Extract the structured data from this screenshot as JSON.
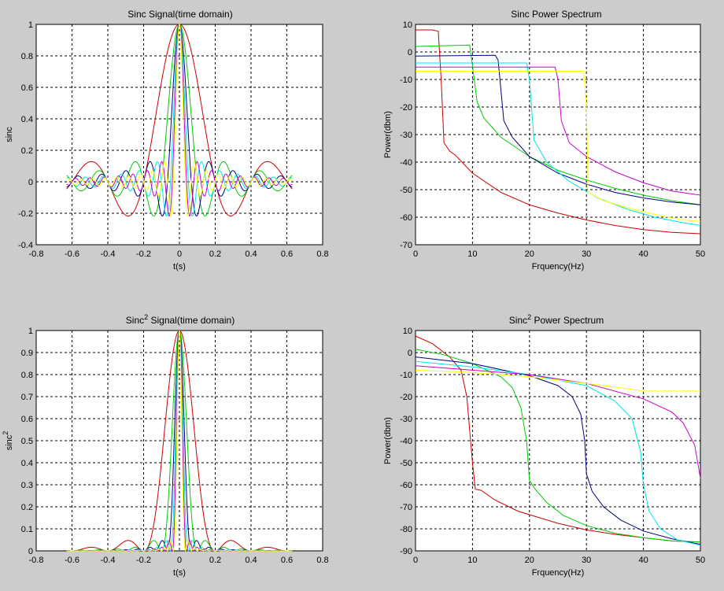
{
  "window": {
    "background": "#cccccc"
  },
  "colors": {
    "series": [
      "#cc0000",
      "#00cc00",
      "#000080",
      "#00e5e5",
      "#cc00cc",
      "#ffff00"
    ],
    "axes_bg": "#ffffff",
    "grid": "#000000"
  },
  "chart_data": [
    {
      "type": "line",
      "title": "Sinc Signal(time domain)",
      "xlabel": "t(s)",
      "ylabel": "sinc",
      "xlim": [
        -0.8,
        0.8
      ],
      "ylim": [
        -0.4,
        1
      ],
      "xticks": [
        -0.8,
        -0.6,
        -0.4,
        -0.2,
        0,
        0.2,
        0.4,
        0.6,
        0.8
      ],
      "yticks": [
        -0.4,
        -0.2,
        0,
        0.2,
        0.4,
        0.6,
        0.8,
        1
      ],
      "xtick_labels": [
        "-0.8",
        "-0.6",
        "-0.4",
        "-0.2",
        "0",
        "0.2",
        "0.4",
        "0.6",
        "0.8"
      ],
      "ytick_labels": [
        "-0.4",
        "-0.2",
        "0",
        "0.2",
        "0.4",
        "0.6",
        "0.8",
        "1"
      ],
      "grid": true,
      "series": [
        {
          "color": "#cc0000",
          "bandwidth_hz": 5,
          "x_range": [
            -0.63,
            0.63
          ],
          "kind": "sinc"
        },
        {
          "color": "#00cc00",
          "bandwidth_hz": 10,
          "x_range": [
            -0.63,
            0.63
          ],
          "kind": "sinc"
        },
        {
          "color": "#000080",
          "bandwidth_hz": 15,
          "x_range": [
            -0.63,
            0.63
          ],
          "kind": "sinc"
        },
        {
          "color": "#00e5e5",
          "bandwidth_hz": 20,
          "x_range": [
            -0.63,
            0.63
          ],
          "kind": "sinc"
        },
        {
          "color": "#cc00cc",
          "bandwidth_hz": 25,
          "x_range": [
            -0.63,
            0.63
          ],
          "kind": "sinc"
        },
        {
          "color": "#ffff00",
          "bandwidth_hz": 30,
          "x_range": [
            -0.63,
            0.63
          ],
          "kind": "sinc"
        }
      ]
    },
    {
      "type": "line",
      "title": "Sinc Power Spectrum",
      "xlabel": "Frquency(Hz)",
      "ylabel": "Power(dbm)",
      "xlim": [
        0,
        50
      ],
      "ylim": [
        -70,
        10
      ],
      "xticks": [
        0,
        10,
        20,
        30,
        40,
        50
      ],
      "yticks": [
        -70,
        -60,
        -50,
        -40,
        -30,
        -20,
        -10,
        0,
        10
      ],
      "xtick_labels": [
        "0",
        "10",
        "20",
        "30",
        "40",
        "50"
      ],
      "ytick_labels": [
        "-70",
        "-60",
        "-50",
        "-40",
        "-30",
        "-20",
        "-10",
        "0",
        "10"
      ],
      "grid": true,
      "series": [
        {
          "color": "#cc0000",
          "points": [
            [
              0,
              8
            ],
            [
              3,
              8
            ],
            [
              4,
              7.5
            ],
            [
              4.5,
              -10
            ],
            [
              5,
              -33
            ],
            [
              6,
              -36
            ],
            [
              7,
              -37.5
            ],
            [
              10,
              -44
            ],
            [
              15,
              -51
            ],
            [
              20,
              -55.5
            ],
            [
              25,
              -58.5
            ],
            [
              30,
              -61
            ],
            [
              35,
              -63
            ],
            [
              40,
              -64.5
            ],
            [
              45,
              -65.5
            ],
            [
              50,
              -66
            ]
          ]
        },
        {
          "color": "#00cc00",
          "points": [
            [
              0,
              2
            ],
            [
              9.5,
              2.5
            ],
            [
              10,
              -5
            ],
            [
              10.8,
              -18
            ],
            [
              12,
              -24
            ],
            [
              15,
              -31
            ],
            [
              20,
              -38
            ],
            [
              25,
              -43
            ],
            [
              30,
              -46.5
            ],
            [
              35,
              -49.5
            ],
            [
              40,
              -52
            ],
            [
              45,
              -54
            ],
            [
              50,
              -55.5
            ]
          ]
        },
        {
          "color": "#000080",
          "points": [
            [
              0,
              -1.5
            ],
            [
              14,
              -1.2
            ],
            [
              14.5,
              -3
            ],
            [
              15.5,
              -25
            ],
            [
              17,
              -31
            ],
            [
              20,
              -38
            ],
            [
              25,
              -44
            ],
            [
              30,
              -48
            ],
            [
              35,
              -51
            ],
            [
              40,
              -53
            ],
            [
              45,
              -54.5
            ],
            [
              50,
              -55.5
            ]
          ]
        },
        {
          "color": "#00e5e5",
          "points": [
            [
              0,
              -4
            ],
            [
              19.5,
              -4
            ],
            [
              20,
              -10
            ],
            [
              20.8,
              -32
            ],
            [
              23,
              -40
            ],
            [
              27,
              -47
            ],
            [
              32,
              -53
            ],
            [
              37,
              -57
            ],
            [
              42,
              -60
            ],
            [
              47,
              -62
            ],
            [
              50,
              -63
            ]
          ]
        },
        {
          "color": "#cc00cc",
          "points": [
            [
              0,
              -5.5
            ],
            [
              24.5,
              -5.5
            ],
            [
              25,
              -10
            ],
            [
              25.6,
              -25
            ],
            [
              27,
              -33
            ],
            [
              30,
              -38
            ],
            [
              35,
              -43.5
            ],
            [
              40,
              -47.5
            ],
            [
              45,
              -50.5
            ],
            [
              50,
              -52
            ]
          ]
        },
        {
          "color": "#ffff00",
          "points": [
            [
              0,
              -7
            ],
            [
              29.5,
              -7
            ],
            [
              30,
              -20
            ],
            [
              30.3,
              -51
            ],
            [
              33,
              -54
            ],
            [
              37,
              -56.5
            ],
            [
              42,
              -59
            ],
            [
              47,
              -61
            ],
            [
              50,
              -61.5
            ]
          ]
        }
      ]
    },
    {
      "type": "line",
      "title_main": "Sinc",
      "title_sup": "2",
      "title_rest": " Signal(time domain)",
      "xlabel": "t(s)",
      "ylabel_main": "sinc",
      "ylabel_sup": "2",
      "xlim": [
        -0.8,
        0.8
      ],
      "ylim": [
        0,
        1
      ],
      "xticks": [
        -0.8,
        -0.6,
        -0.4,
        -0.2,
        0,
        0.2,
        0.4,
        0.6,
        0.8
      ],
      "yticks": [
        0,
        0.1,
        0.2,
        0.3,
        0.4,
        0.5,
        0.6,
        0.7,
        0.8,
        0.9,
        1
      ],
      "xtick_labels": [
        "-0.8",
        "-0.6",
        "-0.4",
        "-0.2",
        "0",
        "0.2",
        "0.4",
        "0.6",
        "0.8"
      ],
      "ytick_labels": [
        "0",
        "0.1",
        "0.2",
        "0.3",
        "0.4",
        "0.5",
        "0.6",
        "0.7",
        "0.8",
        "0.9",
        "1"
      ],
      "grid": true,
      "series": [
        {
          "color": "#cc0000",
          "bandwidth_hz": 5,
          "x_range": [
            -0.63,
            0.63
          ],
          "kind": "sinc2"
        },
        {
          "color": "#00cc00",
          "bandwidth_hz": 10,
          "x_range": [
            -0.63,
            0.63
          ],
          "kind": "sinc2"
        },
        {
          "color": "#000080",
          "bandwidth_hz": 15,
          "x_range": [
            -0.63,
            0.63
          ],
          "kind": "sinc2"
        },
        {
          "color": "#00e5e5",
          "bandwidth_hz": 20,
          "x_range": [
            -0.63,
            0.63
          ],
          "kind": "sinc2"
        },
        {
          "color": "#cc00cc",
          "bandwidth_hz": 25,
          "x_range": [
            -0.63,
            0.63
          ],
          "kind": "sinc2"
        },
        {
          "color": "#ffff00",
          "bandwidth_hz": 30,
          "x_range": [
            -0.63,
            0.63
          ],
          "kind": "sinc2"
        }
      ]
    },
    {
      "type": "line",
      "title_main": "Sinc",
      "title_sup": "2",
      "title_rest": " Power Spectrum",
      "xlabel": "Frquency(Hz)",
      "ylabel": "Power(dbm)",
      "xlim": [
        0,
        50
      ],
      "ylim": [
        -90,
        10
      ],
      "xticks": [
        0,
        10,
        20,
        30,
        40,
        50
      ],
      "yticks": [
        -90,
        -80,
        -70,
        -60,
        -50,
        -40,
        -30,
        -20,
        -10,
        0,
        10
      ],
      "xtick_labels": [
        "0",
        "10",
        "20",
        "30",
        "40",
        "50"
      ],
      "ytick_labels": [
        "-90",
        "-80",
        "-70",
        "-60",
        "-50",
        "-40",
        "-30",
        "-20",
        "-10",
        "0",
        "10"
      ],
      "grid": true,
      "series": [
        {
          "color": "#cc0000",
          "points": [
            [
              0,
              7.5
            ],
            [
              3,
              4
            ],
            [
              6,
              -2
            ],
            [
              8,
              -8
            ],
            [
              9,
              -20
            ],
            [
              9.5,
              -35
            ],
            [
              10,
              -50
            ],
            [
              10.5,
              -62
            ],
            [
              11.5,
              -62.5
            ],
            [
              14,
              -67
            ],
            [
              18,
              -72
            ],
            [
              25,
              -77.5
            ],
            [
              30,
              -80.5
            ],
            [
              35,
              -82.5
            ],
            [
              40,
              -84
            ],
            [
              45,
              -85.5
            ],
            [
              50,
              -86
            ]
          ]
        },
        {
          "color": "#00cc00",
          "points": [
            [
              0,
              1.5
            ],
            [
              5,
              -1
            ],
            [
              10,
              -5
            ],
            [
              15,
              -11
            ],
            [
              17,
              -16
            ],
            [
              18.5,
              -25
            ],
            [
              19.5,
              -40
            ],
            [
              20,
              -58
            ],
            [
              21,
              -62
            ],
            [
              23,
              -68
            ],
            [
              26,
              -74
            ],
            [
              30,
              -78.5
            ],
            [
              35,
              -82
            ],
            [
              40,
              -84
            ],
            [
              45,
              -85.5
            ],
            [
              50,
              -86
            ]
          ]
        },
        {
          "color": "#000080",
          "points": [
            [
              0,
              -2
            ],
            [
              10,
              -5
            ],
            [
              20,
              -10.5
            ],
            [
              25,
              -15
            ],
            [
              27.5,
              -20
            ],
            [
              29,
              -28
            ],
            [
              29.7,
              -40
            ],
            [
              30,
              -55
            ],
            [
              31,
              -63
            ],
            [
              33,
              -70
            ],
            [
              36,
              -76
            ],
            [
              40,
              -81
            ],
            [
              45,
              -84.5
            ],
            [
              50,
              -87
            ]
          ]
        },
        {
          "color": "#00e5e5",
          "points": [
            [
              0,
              -4
            ],
            [
              10,
              -6.5
            ],
            [
              20,
              -10
            ],
            [
              30,
              -15
            ],
            [
              35,
              -22
            ],
            [
              38,
              -30
            ],
            [
              39.5,
              -45
            ],
            [
              40,
              -60
            ],
            [
              41,
              -72
            ],
            [
              43,
              -80
            ],
            [
              46,
              -85
            ],
            [
              50,
              -87.5
            ]
          ]
        },
        {
          "color": "#cc00cc",
          "points": [
            [
              0,
              -6
            ],
            [
              10,
              -8
            ],
            [
              20,
              -10
            ],
            [
              30,
              -14
            ],
            [
              40,
              -21
            ],
            [
              45,
              -27
            ],
            [
              47,
              -32
            ],
            [
              49,
              -42
            ],
            [
              50,
              -57
            ]
          ]
        },
        {
          "color": "#ffff00",
          "points": [
            [
              0,
              -8
            ],
            [
              10,
              -9
            ],
            [
              20,
              -11
            ],
            [
              30,
              -14
            ],
            [
              36,
              -16
            ],
            [
              40,
              -17.5
            ],
            [
              50,
              -17.5
            ]
          ]
        }
      ]
    }
  ]
}
